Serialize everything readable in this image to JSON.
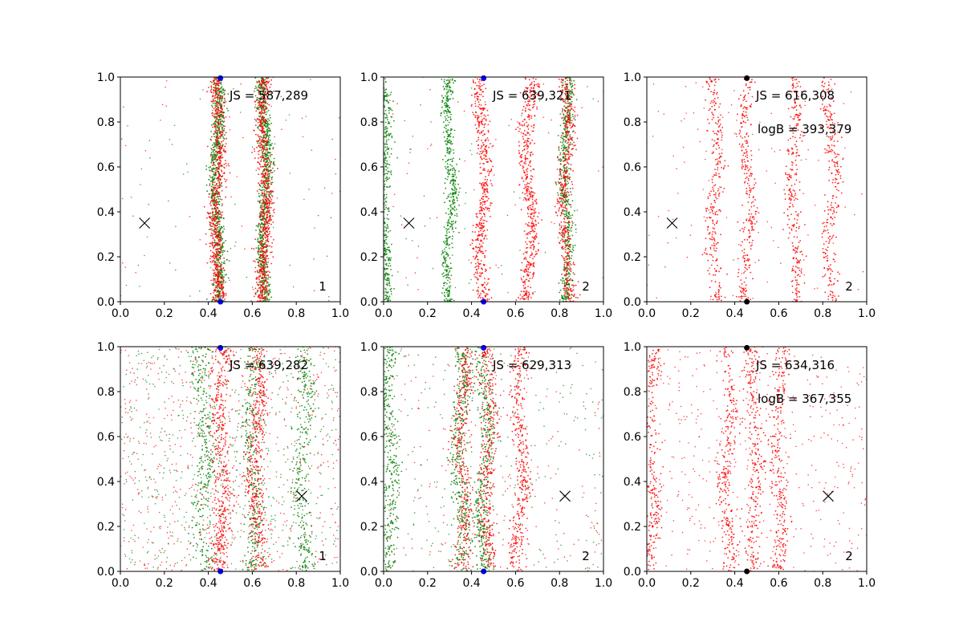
{
  "colors": {
    "green": "#008000",
    "red": "#ff0000",
    "blue": "#0000ff",
    "black": "#000000",
    "background": "#ffffff"
  },
  "chart_data": [
    {
      "type": "scatter",
      "panel": "top-left",
      "xlim": [
        0,
        1
      ],
      "ylim": [
        0,
        1
      ],
      "x_ticks": [
        "0.0",
        "0.2",
        "0.4",
        "0.6",
        "0.8",
        "1.0"
      ],
      "y_ticks": [
        "0.0",
        "0.2",
        "0.4",
        "0.6",
        "0.8",
        "1.0"
      ],
      "annotations": [
        "JS = 587,289"
      ],
      "corner_label": "1",
      "x_marker": {
        "x": 0.11,
        "y": 0.35
      },
      "dots": [
        {
          "x": 0.455,
          "y": 0.995,
          "color": "blue"
        },
        {
          "x": 0.455,
          "y": 0.0,
          "color": "blue"
        }
      ],
      "series": [
        {
          "color": "green",
          "bands": [
            0.44,
            0.655
          ],
          "band_width": 0.025,
          "density": "high",
          "wiggle": 0.012
        },
        {
          "color": "red",
          "bands": [
            0.44,
            0.655
          ],
          "band_width": 0.03,
          "density": "high",
          "wiggle": 0.012
        }
      ],
      "background_noise": "low"
    },
    {
      "type": "scatter",
      "panel": "top-middle",
      "xlim": [
        0,
        1
      ],
      "ylim": [
        0,
        1
      ],
      "x_ticks": [
        "0.0",
        "0.2",
        "0.4",
        "0.6",
        "0.8",
        "1.0"
      ],
      "y_ticks": [
        "0.0",
        "0.2",
        "0.4",
        "0.6",
        "0.8",
        "1.0"
      ],
      "annotations": [
        "JS = 639,321"
      ],
      "corner_label": "2",
      "x_marker": {
        "x": 0.115,
        "y": 0.35
      },
      "dots": [
        {
          "x": 0.455,
          "y": 0.995,
          "color": "blue"
        },
        {
          "x": 0.455,
          "y": 0.0,
          "color": "blue"
        }
      ],
      "series": [
        {
          "color": "green",
          "bands": [
            0.005,
            0.3,
            0.83
          ],
          "band_width": 0.025,
          "density": "high",
          "wiggle": 0.012
        },
        {
          "color": "red",
          "bands": [
            0.45,
            0.66,
            0.83
          ],
          "band_width": 0.03,
          "density": "high",
          "wiggle": 0.015
        }
      ],
      "background_noise": "low"
    },
    {
      "type": "scatter",
      "panel": "top-right",
      "xlim": [
        0,
        1
      ],
      "ylim": [
        0,
        1
      ],
      "x_ticks": [
        "0.0",
        "0.2",
        "0.4",
        "0.6",
        "0.8",
        "1.0"
      ],
      "y_ticks": [
        "0.0",
        "0.2",
        "0.4",
        "0.6",
        "0.8",
        "1.0"
      ],
      "annotations": [
        "JS = 616,308",
        "logB = 393,379"
      ],
      "corner_label": "2",
      "x_marker": {
        "x": 0.115,
        "y": 0.35
      },
      "dots": [
        {
          "x": 0.455,
          "y": 0.995,
          "color": "black"
        },
        {
          "x": 0.455,
          "y": 0.0,
          "color": "black"
        }
      ],
      "series": [
        {
          "color": "red",
          "bands": [
            0.31,
            0.455,
            0.67,
            0.84
          ],
          "band_width": 0.03,
          "density": "medium",
          "wiggle": 0.015
        }
      ],
      "background_noise": "low"
    },
    {
      "type": "scatter",
      "panel": "bottom-left",
      "xlim": [
        0,
        1
      ],
      "ylim": [
        0,
        1
      ],
      "x_ticks": [
        "0.0",
        "0.2",
        "0.4",
        "0.6",
        "0.8",
        "1.0"
      ],
      "y_ticks": [
        "0.0",
        "0.2",
        "0.4",
        "0.6",
        "0.8",
        "1.0"
      ],
      "annotations": [
        "JS = 639,282"
      ],
      "corner_label": "1",
      "x_marker": {
        "x": 0.825,
        "y": 0.335
      },
      "dots": [
        {
          "x": 0.455,
          "y": 0.995,
          "color": "blue"
        },
        {
          "x": 0.455,
          "y": 0.0,
          "color": "blue"
        }
      ],
      "series": [
        {
          "color": "green",
          "bands": [
            0.38,
            0.6,
            0.83
          ],
          "band_width": 0.04,
          "density": "low",
          "wiggle": 0.015
        },
        {
          "color": "red",
          "bands": [
            0.46,
            0.62
          ],
          "band_width": 0.04,
          "density": "low",
          "wiggle": 0.015
        }
      ],
      "background_noise": "high"
    },
    {
      "type": "scatter",
      "panel": "bottom-middle",
      "xlim": [
        0,
        1
      ],
      "ylim": [
        0,
        1
      ],
      "x_ticks": [
        "0.0",
        "0.2",
        "0.4",
        "0.6",
        "0.8",
        "1.0"
      ],
      "y_ticks": [
        "0.0",
        "0.2",
        "0.4",
        "0.6",
        "0.8",
        "1.0"
      ],
      "annotations": [
        "JS = 629,313"
      ],
      "corner_label": "2",
      "x_marker": {
        "x": 0.825,
        "y": 0.335
      },
      "dots": [
        {
          "x": 0.455,
          "y": 0.995,
          "color": "blue"
        },
        {
          "x": 0.455,
          "y": 0.0,
          "color": "blue"
        }
      ],
      "series": [
        {
          "color": "green",
          "bands": [
            0.03,
            0.35,
            0.46
          ],
          "band_width": 0.035,
          "density": "medium",
          "wiggle": 0.015
        },
        {
          "color": "red",
          "bands": [
            0.36,
            0.475,
            0.62
          ],
          "band_width": 0.035,
          "density": "medium",
          "wiggle": 0.015
        }
      ],
      "background_noise": "medium"
    },
    {
      "type": "scatter",
      "panel": "bottom-right",
      "xlim": [
        0,
        1
      ],
      "ylim": [
        0,
        1
      ],
      "x_ticks": [
        "0.0",
        "0.2",
        "0.4",
        "0.6",
        "0.8",
        "1.0"
      ],
      "y_ticks": [
        "0.0",
        "0.2",
        "0.4",
        "0.6",
        "0.8",
        "1.0"
      ],
      "annotations": [
        "JS = 634,316",
        "logB = 367,355"
      ],
      "corner_label": "2",
      "x_marker": {
        "x": 0.825,
        "y": 0.335
      },
      "dots": [
        {
          "x": 0.455,
          "y": 0.995,
          "color": "black"
        },
        {
          "x": 0.455,
          "y": 0.0,
          "color": "black"
        }
      ],
      "series": [
        {
          "color": "red",
          "bands": [
            0.02,
            0.37,
            0.49,
            0.6
          ],
          "band_width": 0.035,
          "density": "medium",
          "wiggle": 0.015
        }
      ],
      "background_noise": "medium"
    }
  ]
}
